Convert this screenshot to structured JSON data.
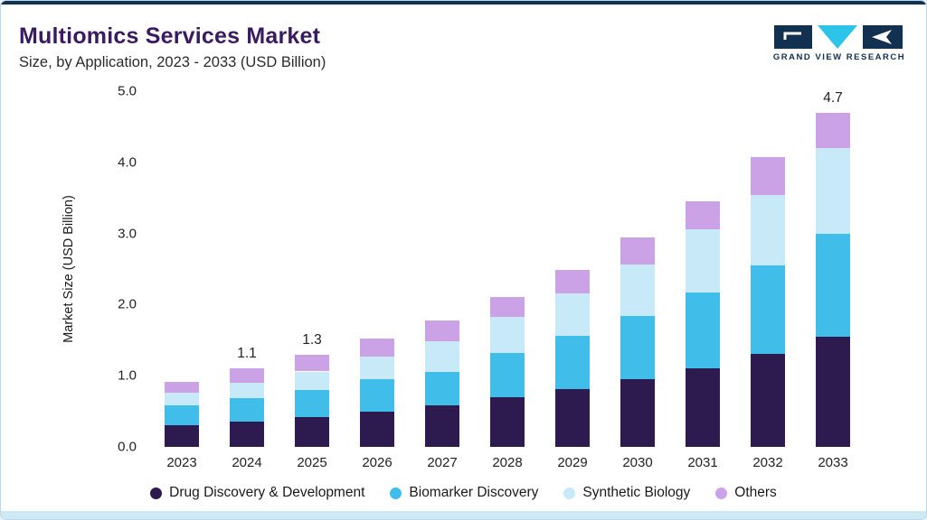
{
  "header": {
    "title": "Multiomics Services Market",
    "subtitle": "Size, by Application, 2023 - 2033 (USD Billion)"
  },
  "brand": {
    "name": "GRAND VIEW RESEARCH"
  },
  "colors": {
    "accent_top": "#12304f",
    "accent_bottom": "#cfe8f6",
    "card_border": "#b9d9eb",
    "title_text": "#3a1b61",
    "logo_navy": "#12304f",
    "logo_teal": "#2cc5e9",
    "axis_text": "#222222"
  },
  "chart_data": {
    "type": "bar",
    "stacked": true,
    "title": "Multiomics Services Market",
    "subtitle": "Size, by Application, 2023 - 2033 (USD Billion)",
    "xlabel": "",
    "ylabel": "Market Size (USD Billion)",
    "ylim": [
      0,
      5
    ],
    "grid": false,
    "legend_position": "bottom",
    "ytick_labels": [
      "0.0",
      "1.0",
      "2.0",
      "3.0",
      "4.0",
      "5.0"
    ],
    "categories": [
      "2023",
      "2024",
      "2025",
      "2026",
      "2027",
      "2028",
      "2029",
      "2030",
      "2031",
      "2032",
      "2033"
    ],
    "series": [
      {
        "name": "Drug Discovery & Development",
        "color": "#2d1a4e",
        "values": [
          0.3,
          0.36,
          0.42,
          0.5,
          0.58,
          0.7,
          0.81,
          0.95,
          1.1,
          1.31,
          1.55
        ]
      },
      {
        "name": "Biomarker Discovery",
        "color": "#41bde9",
        "values": [
          0.28,
          0.32,
          0.38,
          0.45,
          0.47,
          0.62,
          0.75,
          0.89,
          1.07,
          1.24,
          1.45
        ]
      },
      {
        "name": "Synthetic Biology",
        "color": "#c7e9f8",
        "values": [
          0.18,
          0.22,
          0.26,
          0.32,
          0.43,
          0.51,
          0.6,
          0.72,
          0.89,
          0.99,
          1.2
        ]
      },
      {
        "name": "Others",
        "color": "#cba2e5",
        "values": [
          0.16,
          0.2,
          0.24,
          0.25,
          0.3,
          0.28,
          0.33,
          0.38,
          0.39,
          0.53,
          0.5
        ]
      }
    ],
    "totals_shown": [
      {
        "category": "2024",
        "label": "1.1"
      },
      {
        "category": "2025",
        "label": "1.3"
      },
      {
        "category": "2033",
        "label": "4.7"
      }
    ]
  }
}
